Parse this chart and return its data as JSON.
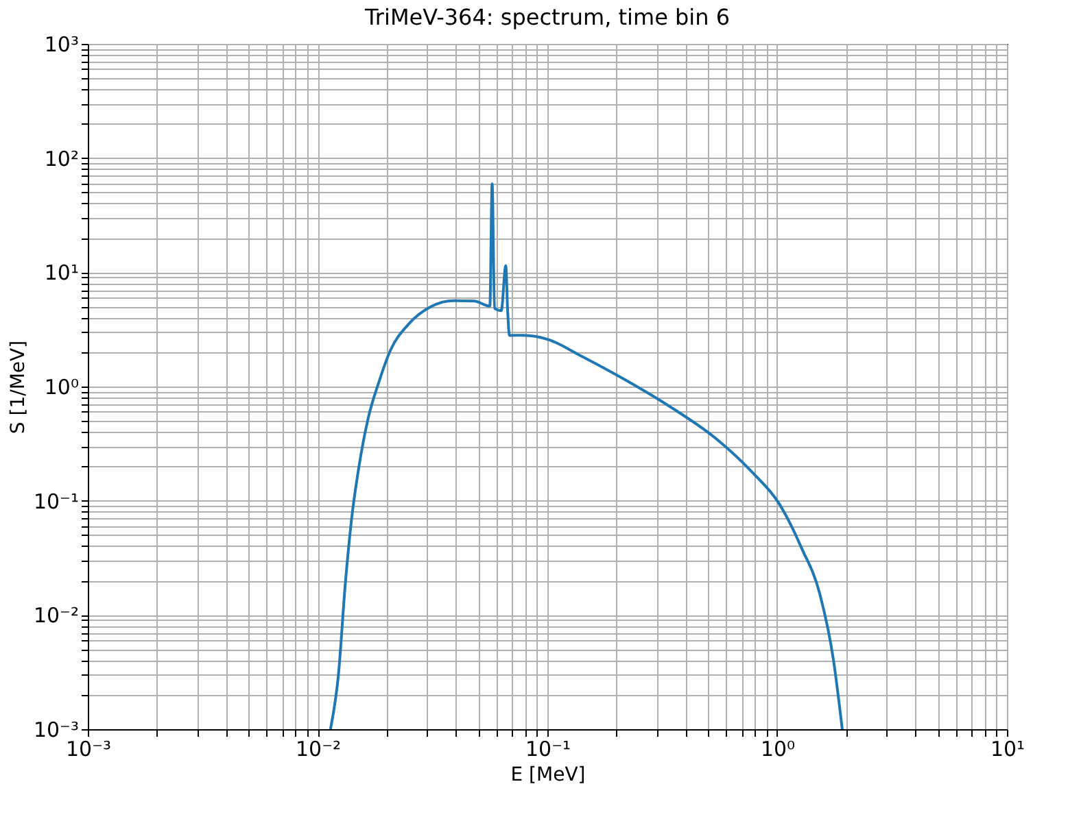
{
  "chart_data": {
    "type": "line",
    "title": "TriMeV-364: spectrum, time bin 6",
    "xlabel": "E [MeV]",
    "ylabel": "S [1/MeV]",
    "log": "xy",
    "grid": true,
    "line_style": "solid",
    "marker": "none",
    "x": [
      0.01138,
      0.01233,
      0.0132,
      0.0141,
      0.0151,
      0.0166,
      0.0185,
      0.0207,
      0.0249,
      0.0311,
      0.0392,
      0.048,
      0.0562,
      0.0575,
      0.0589,
      0.063,
      0.0659,
      0.0672,
      0.0684,
      0.0773,
      0.0885,
      0.1014,
      0.139,
      0.219,
      0.344,
      0.541,
      0.778,
      1.02,
      1.28,
      1.53,
      1.76,
      1.92
    ],
    "series": [
      {
        "color": "#1f77b4",
        "values": [
          0.001,
          0.00303,
          0.0187,
          0.0726,
          0.193,
          0.527,
          1.1,
          2.05,
          3.52,
          5.0,
          5.64,
          5.6,
          5.06,
          59.4,
          4.84,
          4.62,
          11.4,
          4.5,
          2.8,
          2.81,
          2.75,
          2.57,
          1.87,
          1.14,
          0.661,
          0.351,
          0.178,
          0.0944,
          0.0382,
          0.0155,
          0.00397,
          0.001
        ]
      }
    ],
    "xlim": [
      0.001,
      10
    ],
    "ylim": [
      0.001,
      1000
    ],
    "xticks": [
      {
        "value": 0.001,
        "label": "10⁻³"
      },
      {
        "value": 0.002,
        "label": null
      },
      {
        "value": 0.003,
        "label": null
      },
      {
        "value": 0.004,
        "label": null
      },
      {
        "value": 0.005,
        "label": null
      },
      {
        "value": 0.006,
        "label": null
      },
      {
        "value": 0.007,
        "label": null
      },
      {
        "value": 0.008,
        "label": null
      },
      {
        "value": 0.009,
        "label": null
      },
      {
        "value": 0.01,
        "label": "10⁻²"
      },
      {
        "value": 0.02,
        "label": null
      },
      {
        "value": 0.03,
        "label": null
      },
      {
        "value": 0.04,
        "label": null
      },
      {
        "value": 0.05,
        "label": null
      },
      {
        "value": 0.06,
        "label": null
      },
      {
        "value": 0.07,
        "label": null
      },
      {
        "value": 0.08,
        "label": null
      },
      {
        "value": 0.09,
        "label": null
      },
      {
        "value": 0.1,
        "label": "10⁻¹"
      },
      {
        "value": 0.2,
        "label": null
      },
      {
        "value": 0.3,
        "label": null
      },
      {
        "value": 0.4,
        "label": null
      },
      {
        "value": 0.5,
        "label": null
      },
      {
        "value": 0.6,
        "label": null
      },
      {
        "value": 0.7,
        "label": null
      },
      {
        "value": 0.8,
        "label": null
      },
      {
        "value": 0.9,
        "label": null
      },
      {
        "value": 1,
        "label": "10⁰"
      },
      {
        "value": 2,
        "label": null
      },
      {
        "value": 3,
        "label": null
      },
      {
        "value": 4,
        "label": null
      },
      {
        "value": 5,
        "label": null
      },
      {
        "value": 6,
        "label": null
      },
      {
        "value": 7,
        "label": null
      },
      {
        "value": 8,
        "label": null
      },
      {
        "value": 9,
        "label": null
      },
      {
        "value": 10,
        "label": "10¹"
      }
    ],
    "yticks": [
      {
        "value": 0.001,
        "label": "10⁻³"
      },
      {
        "value": 0.002,
        "label": null
      },
      {
        "value": 0.003,
        "label": null
      },
      {
        "value": 0.004,
        "label": null
      },
      {
        "value": 0.005,
        "label": null
      },
      {
        "value": 0.006,
        "label": null
      },
      {
        "value": 0.007,
        "label": null
      },
      {
        "value": 0.008,
        "label": null
      },
      {
        "value": 0.009,
        "label": null
      },
      {
        "value": 0.01,
        "label": "10⁻²"
      },
      {
        "value": 0.02,
        "label": null
      },
      {
        "value": 0.03,
        "label": null
      },
      {
        "value": 0.04,
        "label": null
      },
      {
        "value": 0.05,
        "label": null
      },
      {
        "value": 0.06,
        "label": null
      },
      {
        "value": 0.07,
        "label": null
      },
      {
        "value": 0.08,
        "label": null
      },
      {
        "value": 0.09,
        "label": null
      },
      {
        "value": 0.1,
        "label": "10⁻¹"
      },
      {
        "value": 0.2,
        "label": null
      },
      {
        "value": 0.3,
        "label": null
      },
      {
        "value": 0.4,
        "label": null
      },
      {
        "value": 0.5,
        "label": null
      },
      {
        "value": 0.6,
        "label": null
      },
      {
        "value": 0.7,
        "label": null
      },
      {
        "value": 0.8,
        "label": null
      },
      {
        "value": 0.9,
        "label": null
      },
      {
        "value": 1,
        "label": "10⁰"
      },
      {
        "value": 2,
        "label": null
      },
      {
        "value": 3,
        "label": null
      },
      {
        "value": 4,
        "label": null
      },
      {
        "value": 5,
        "label": null
      },
      {
        "value": 6,
        "label": null
      },
      {
        "value": 7,
        "label": null
      },
      {
        "value": 8,
        "label": null
      },
      {
        "value": 9,
        "label": null
      },
      {
        "value": 10,
        "label": "10¹"
      },
      {
        "value": 20,
        "label": null
      },
      {
        "value": 30,
        "label": null
      },
      {
        "value": 40,
        "label": null
      },
      {
        "value": 50,
        "label": null
      },
      {
        "value": 60,
        "label": null
      },
      {
        "value": 70,
        "label": null
      },
      {
        "value": 80,
        "label": null
      },
      {
        "value": 90,
        "label": null
      },
      {
        "value": 100,
        "label": "10²"
      },
      {
        "value": 200,
        "label": null
      },
      {
        "value": 300,
        "label": null
      },
      {
        "value": 400,
        "label": null
      },
      {
        "value": 500,
        "label": null
      },
      {
        "value": 600,
        "label": null
      },
      {
        "value": 700,
        "label": null
      },
      {
        "value": 800,
        "label": null
      },
      {
        "value": 900,
        "label": null
      },
      {
        "value": 1000,
        "label": "10³"
      }
    ]
  }
}
